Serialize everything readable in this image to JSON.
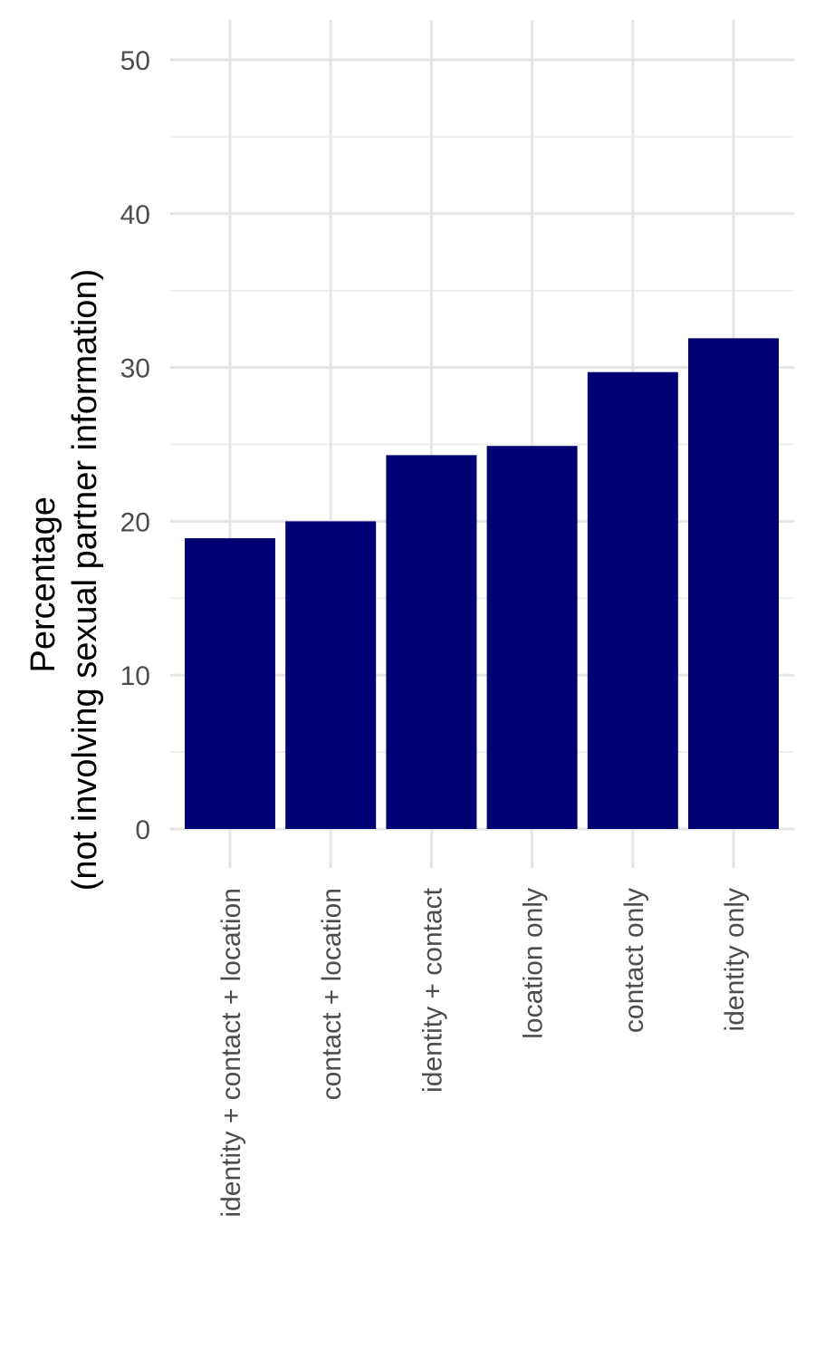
{
  "chart_data": {
    "type": "bar",
    "title": "",
    "xlabel": "",
    "ylabel_lines": [
      "Percentage",
      "(not involving sexual partner information)"
    ],
    "categories": [
      "identity + contact + location",
      "contact + location",
      "identity + contact",
      "location only",
      "contact only",
      "identity only"
    ],
    "values": [
      18.9,
      20.0,
      24.3,
      24.9,
      29.7,
      31.9
    ],
    "ylim": [
      0,
      52
    ],
    "yticks": [
      0,
      10,
      20,
      30,
      40,
      50
    ],
    "ytick_labels": [
      "0",
      "10",
      "20",
      "30",
      "40",
      "50"
    ],
    "grid": true,
    "bar_color": "#000075"
  }
}
